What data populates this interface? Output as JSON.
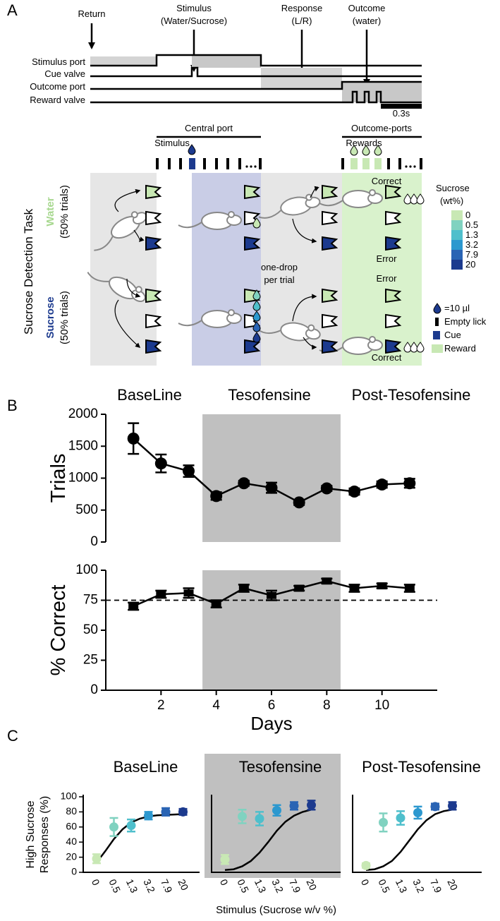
{
  "panel_labels": [
    "A",
    "B",
    "C"
  ],
  "diagram": {
    "events": [
      [
        "Return"
      ],
      [
        "Stimulus",
        "(Water/Sucrose)"
      ],
      [
        "Response",
        "(L/R)"
      ],
      [
        "Outcome",
        "(water)"
      ]
    ],
    "signals": [
      "Stimulus port",
      "Cue valve",
      "Outcome port",
      "Reward valve"
    ],
    "time_scale": "0.3s",
    "central_port": "Central port",
    "stimulus": "Stimulus",
    "outcome_ports": "Outcome-ports",
    "rewards": "Rewards",
    "task": "Sucrose Detection Task",
    "trial_types": [
      {
        "name": "Water",
        "share": "(50% trials)"
      },
      {
        "name": "Sucrose",
        "share": "(50% trials)"
      }
    ],
    "note": [
      "one-drop",
      "per trial"
    ],
    "outcomes": [
      "Correct",
      "Error",
      "Error",
      "Correct"
    ],
    "legend_title": [
      "Sucrose",
      "(wt%)"
    ],
    "levels": [
      "0",
      "0.5",
      "1.3",
      "3.2",
      "7.9",
      "20"
    ],
    "level_colors": [
      "#c8e8b4",
      "#80d2c0",
      "#4fbfcc",
      "#2c98cf",
      "#2a64b4",
      "#1c3a8e"
    ],
    "keys": [
      "=10 µl",
      "Empty lick",
      "Cue",
      "Reward"
    ]
  },
  "chart_data": [
    {
      "type": "line",
      "ylabel": "Trials",
      "phase_labels": [
        "BaseLine",
        "Tesofensine",
        "Post-Tesofensine"
      ],
      "x": [
        1,
        2,
        3,
        4,
        5,
        6,
        7,
        8,
        9,
        10,
        11
      ],
      "values": [
        1620,
        1230,
        1110,
        720,
        920,
        850,
        620,
        840,
        790,
        900,
        920
      ],
      "errors": [
        240,
        140,
        90,
        60,
        40,
        80,
        40,
        40,
        50,
        50,
        70
      ],
      "xlim": [
        0,
        12
      ],
      "ylim": [
        0,
        2000
      ],
      "yticks": [
        0,
        500,
        1000,
        1500,
        2000
      ],
      "shade_x": [
        3.5,
        8.5
      ],
      "marker": "circle",
      "color": "#000000"
    },
    {
      "type": "line",
      "ylabel": "% Correct",
      "xlabel": "Days",
      "x": [
        1,
        2,
        3,
        4,
        5,
        6,
        7,
        8,
        9,
        10,
        11
      ],
      "values": [
        70,
        80,
        81,
        72,
        85,
        79,
        85,
        91,
        85,
        87,
        85
      ],
      "errors": [
        3,
        3,
        4,
        3,
        3,
        4,
        2,
        2,
        3,
        2,
        3
      ],
      "xlim": [
        0,
        12
      ],
      "ylim": [
        0,
        100
      ],
      "xticks": [
        2,
        4,
        6,
        8,
        10
      ],
      "yticks": [
        0,
        25,
        50,
        75,
        100
      ],
      "hline": 75,
      "shade_x": [
        3.5,
        8.5
      ],
      "marker": "square",
      "color": "#000000"
    },
    {
      "type": "errorbar",
      "title": "BaseLine",
      "ylabel": [
        "High Sucrose",
        "Responses (%)"
      ],
      "categories": [
        "0",
        "0.5",
        "1.3",
        "3.2",
        "7.9",
        "20"
      ],
      "values": [
        18,
        60,
        62,
        75,
        80,
        80
      ],
      "errors": [
        6,
        12,
        8,
        5,
        5,
        4
      ],
      "colors": [
        "#c8e8b4",
        "#80d2c0",
        "#4fbfcc",
        "#2c98cf",
        "#2a64b4",
        "#1c3a8e"
      ],
      "ylim": [
        0,
        100
      ],
      "yticks": [
        0,
        20,
        40,
        60,
        80,
        100
      ],
      "fit": {
        "x": [
          0,
          0.5,
          1,
          1.5,
          2,
          2.5,
          3,
          3.5,
          4,
          4.5,
          5
        ],
        "y": [
          13,
          28,
          44,
          57,
          66,
          71,
          74,
          75.5,
          76,
          76.5,
          77
        ]
      }
    },
    {
      "type": "errorbar",
      "title": "Tesofensine",
      "xlabel": "Stimulus (Sucrose w/v %)",
      "shaded": true,
      "categories": [
        "0",
        "0.5",
        "1.3",
        "3.2",
        "7.9",
        "20"
      ],
      "values": [
        17,
        74,
        71,
        82,
        88,
        89
      ],
      "errors": [
        6,
        9,
        9,
        7,
        5,
        6
      ],
      "colors": [
        "#c8e8b4",
        "#80d2c0",
        "#4fbfcc",
        "#2c98cf",
        "#2a64b4",
        "#1c3a8e"
      ],
      "ylim": [
        0,
        100
      ],
      "fit": {
        "x": [
          0,
          0.5,
          1,
          1.5,
          2,
          2.5,
          3,
          3.5,
          4,
          4.5,
          5
        ],
        "y": [
          3,
          4,
          8,
          15,
          26,
          40,
          55,
          67,
          75,
          80,
          83
        ]
      }
    },
    {
      "type": "errorbar",
      "title": "Post-Tesofensine",
      "categories": [
        "0",
        "0.5",
        "1.3",
        "3.2",
        "7.9",
        "20"
      ],
      "values": [
        9,
        66,
        72,
        79,
        87,
        88
      ],
      "errors": [
        3,
        12,
        9,
        8,
        4,
        5
      ],
      "colors": [
        "#c8e8b4",
        "#80d2c0",
        "#4fbfcc",
        "#2c98cf",
        "#2a64b4",
        "#1c3a8e"
      ],
      "ylim": [
        0,
        100
      ],
      "fit": {
        "x": [
          0,
          0.5,
          1,
          1.5,
          2,
          2.5,
          3,
          3.5,
          4,
          4.5,
          5
        ],
        "y": [
          3,
          4,
          8,
          15,
          27,
          42,
          57,
          69,
          77,
          81,
          83
        ]
      }
    }
  ]
}
